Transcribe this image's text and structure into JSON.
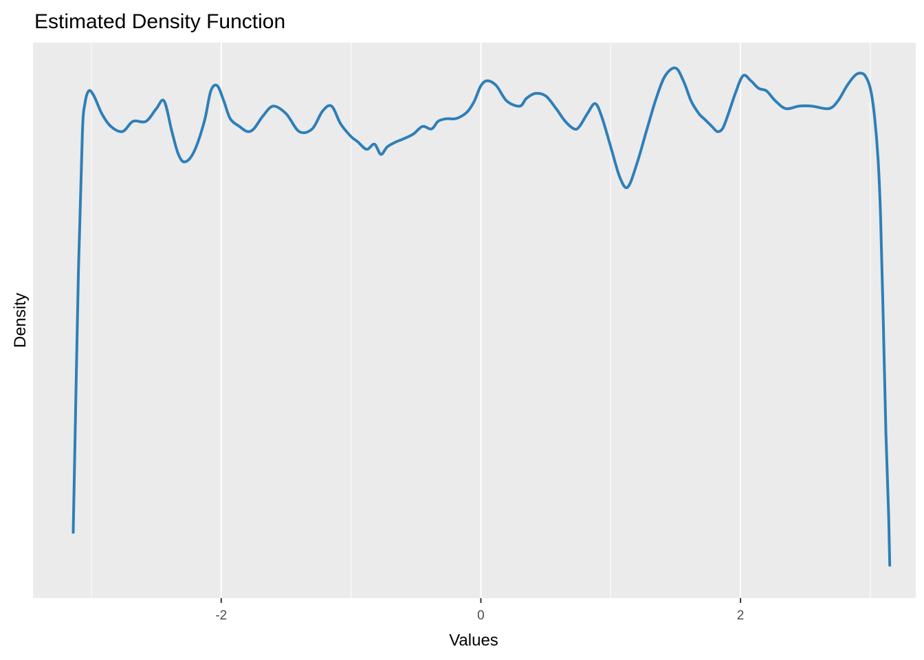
{
  "chart_data": {
    "type": "line",
    "title": "Estimated Density Function",
    "xlabel": "Values",
    "ylabel": "Density",
    "xlim": [
      -3.45,
      3.35
    ],
    "ylim": [
      0,
      1
    ],
    "x_ticks": [
      -2,
      0,
      2
    ],
    "x_tick_labels": [
      "-2",
      "0",
      "2"
    ],
    "grid": true,
    "legend": "none",
    "colors": {
      "line": "#2e7fb8",
      "panel": "#ebebeb",
      "grid": "#ffffff",
      "tick": "#333333"
    },
    "series": [
      {
        "x": [
          -3.14,
          -3.1,
          -3.07,
          -3.05,
          -3.02,
          -2.98,
          -2.92,
          -2.85,
          -2.76,
          -2.68,
          -2.58,
          -2.5,
          -2.44,
          -2.38,
          -2.33,
          -2.28,
          -2.21,
          -2.13,
          -2.08,
          -2.03,
          -1.98,
          -1.93,
          -1.86,
          -1.8,
          -1.75,
          -1.68,
          -1.6,
          -1.5,
          -1.4,
          -1.3,
          -1.22,
          -1.15,
          -1.08,
          -1.0,
          -0.95,
          -0.88,
          -0.82,
          -0.77,
          -0.72,
          -0.65,
          -0.6,
          -0.52,
          -0.45,
          -0.38,
          -0.33,
          -0.27,
          -0.2,
          -0.15,
          -0.1,
          -0.05,
          0.0,
          0.05,
          0.12,
          0.2,
          0.3,
          0.35,
          0.42,
          0.5,
          0.58,
          0.65,
          0.72,
          0.76,
          0.82,
          0.88,
          0.93,
          1.0,
          1.07,
          1.13,
          1.2,
          1.28,
          1.35,
          1.42,
          1.5,
          1.56,
          1.62,
          1.68,
          1.72,
          1.78,
          1.82,
          1.86,
          1.9,
          1.96,
          2.02,
          2.08,
          2.14,
          2.2,
          2.27,
          2.35,
          2.45,
          2.55,
          2.68,
          2.75,
          2.82,
          2.88,
          2.92,
          2.96,
          3.0,
          3.03,
          3.06,
          3.08,
          3.1,
          3.12,
          3.14,
          3.15
        ],
        "y": [
          0.085,
          0.6,
          0.87,
          0.93,
          0.955,
          0.945,
          0.91,
          0.885,
          0.875,
          0.895,
          0.895,
          0.92,
          0.935,
          0.875,
          0.83,
          0.815,
          0.835,
          0.895,
          0.955,
          0.965,
          0.935,
          0.9,
          0.885,
          0.875,
          0.88,
          0.905,
          0.925,
          0.91,
          0.875,
          0.88,
          0.915,
          0.925,
          0.89,
          0.865,
          0.855,
          0.84,
          0.85,
          0.83,
          0.845,
          0.855,
          0.86,
          0.87,
          0.885,
          0.88,
          0.895,
          0.9,
          0.9,
          0.905,
          0.915,
          0.935,
          0.965,
          0.975,
          0.965,
          0.935,
          0.925,
          0.94,
          0.95,
          0.945,
          0.92,
          0.895,
          0.88,
          0.885,
          0.91,
          0.93,
          0.905,
          0.845,
          0.785,
          0.765,
          0.81,
          0.88,
          0.94,
          0.985,
          1.0,
          0.975,
          0.935,
          0.91,
          0.9,
          0.885,
          0.875,
          0.88,
          0.905,
          0.95,
          0.985,
          0.975,
          0.96,
          0.955,
          0.935,
          0.92,
          0.925,
          0.925,
          0.92,
          0.935,
          0.965,
          0.985,
          0.99,
          0.985,
          0.96,
          0.91,
          0.82,
          0.7,
          0.5,
          0.28,
          0.13,
          0.02
        ]
      }
    ]
  }
}
